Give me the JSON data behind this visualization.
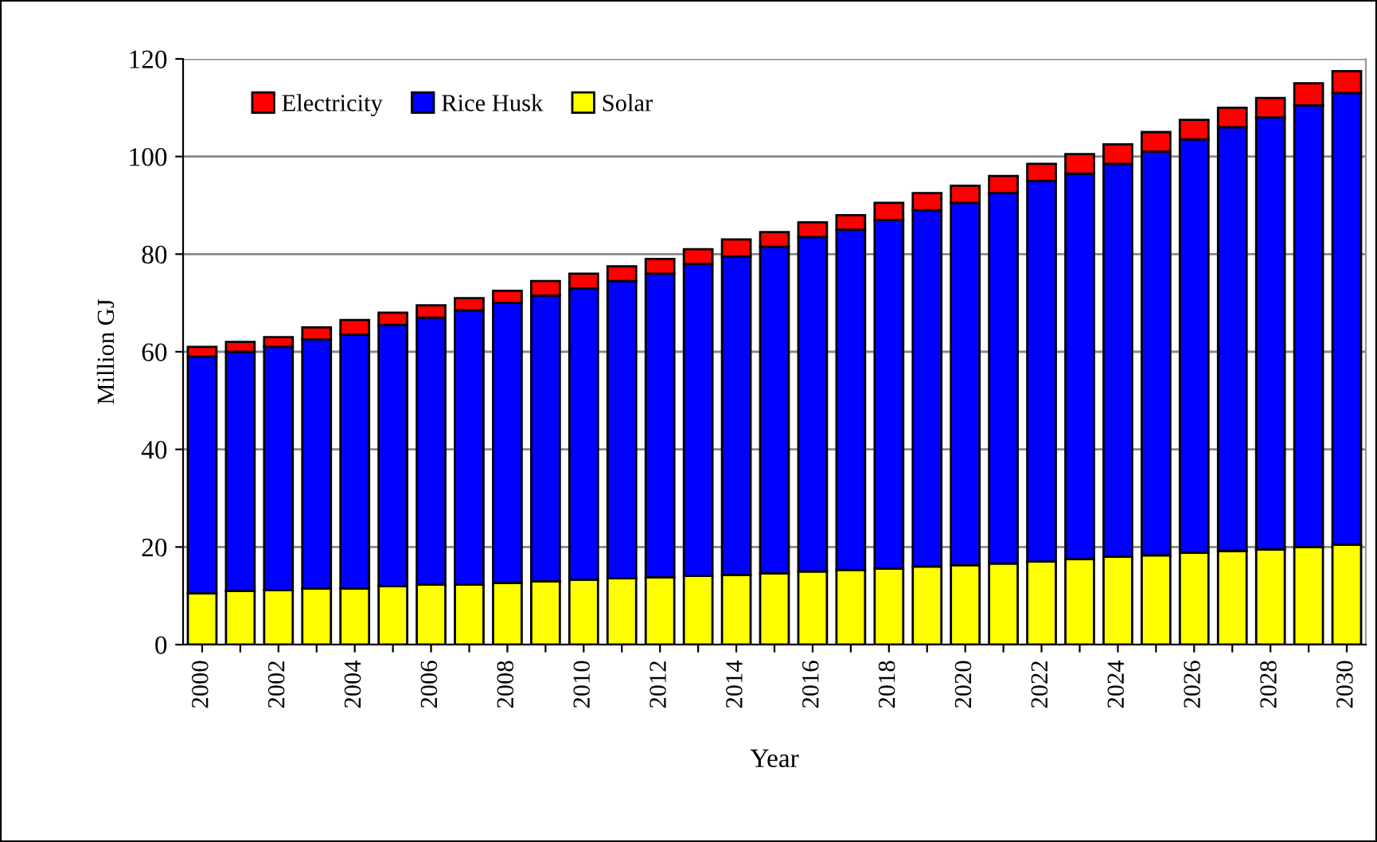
{
  "chart_data": {
    "type": "bar",
    "stacked": true,
    "xlabel": "Year",
    "ylabel": "Million GJ",
    "categories": [
      "2000",
      null,
      "2002",
      null,
      "2004",
      null,
      "2006",
      null,
      "2008",
      null,
      "2010",
      null,
      "2012",
      null,
      "2014",
      null,
      "2016",
      null,
      "2018",
      null,
      "2020",
      null,
      "2022",
      null,
      "2024",
      null,
      "2026",
      null,
      "2028",
      null,
      "2030"
    ],
    "series": [
      {
        "name": "Solar",
        "color": "#ffff00",
        "values": [
          10.5,
          11,
          11.2,
          11.5,
          11.5,
          12,
          12.3,
          12.3,
          12.6,
          13,
          13.3,
          13.6,
          13.8,
          14.1,
          14.3,
          14.6,
          15,
          15.3,
          15.6,
          16,
          16.3,
          16.6,
          17,
          17.5,
          18,
          18.3,
          18.8,
          19.2,
          19.5,
          20,
          20.5
        ]
      },
      {
        "name": "Rice Husk",
        "color": "#0000ff",
        "values": [
          48.5,
          49,
          49.8,
          51,
          52,
          53.5,
          54.7,
          56.2,
          57.4,
          58.5,
          59.7,
          60.9,
          62.2,
          63.9,
          65.2,
          66.9,
          68.5,
          69.7,
          71.4,
          73,
          74.2,
          75.9,
          78,
          79,
          80.5,
          82.7,
          84.7,
          86.8,
          88.5,
          90.5,
          92.5
        ]
      },
      {
        "name": "Electricity",
        "color": "#ff0000",
        "values": [
          2,
          2,
          2,
          2.5,
          3,
          2.5,
          2.5,
          2.5,
          2.5,
          3,
          3,
          3,
          3,
          3,
          3.5,
          3,
          3,
          3,
          3.5,
          3.5,
          3.5,
          3.5,
          3.5,
          4,
          4,
          4,
          4,
          4,
          4,
          4.5,
          4.5
        ]
      }
    ],
    "ylim": [
      0,
      120
    ],
    "yticks": [
      0,
      20,
      40,
      60,
      80,
      100,
      120
    ],
    "grid": "y",
    "legend": "top left"
  }
}
